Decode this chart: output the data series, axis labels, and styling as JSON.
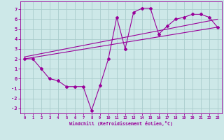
{
  "xlabel": "Windchill (Refroidissement éolien,°C)",
  "background_color": "#cde8e8",
  "grid_color": "#aacccc",
  "line_color": "#990099",
  "xlim": [
    -0.5,
    23.5
  ],
  "ylim": [
    -3.5,
    7.8
  ],
  "yticks": [
    -3,
    -2,
    -1,
    0,
    1,
    2,
    3,
    4,
    5,
    6,
    7
  ],
  "xticks": [
    0,
    1,
    2,
    3,
    4,
    5,
    6,
    7,
    8,
    9,
    10,
    11,
    12,
    13,
    14,
    15,
    16,
    17,
    18,
    19,
    20,
    21,
    22,
    23
  ],
  "main_x": [
    0,
    1,
    2,
    3,
    4,
    5,
    6,
    7,
    8,
    9,
    10,
    11,
    12,
    13,
    14,
    15,
    16,
    17,
    18,
    19,
    20,
    21,
    22,
    23
  ],
  "main_y": [
    2,
    2,
    1,
    0,
    -0.2,
    -0.8,
    -0.8,
    -0.8,
    -3.2,
    -0.7,
    2.0,
    6.2,
    3.0,
    6.7,
    7.1,
    7.1,
    4.5,
    5.3,
    6.0,
    6.2,
    6.5,
    6.5,
    6.2,
    5.2
  ],
  "trend1_x": [
    0,
    23
  ],
  "trend1_y": [
    2.0,
    5.2
  ],
  "trend2_x": [
    0,
    23
  ],
  "trend2_y": [
    2.2,
    6.0
  ]
}
